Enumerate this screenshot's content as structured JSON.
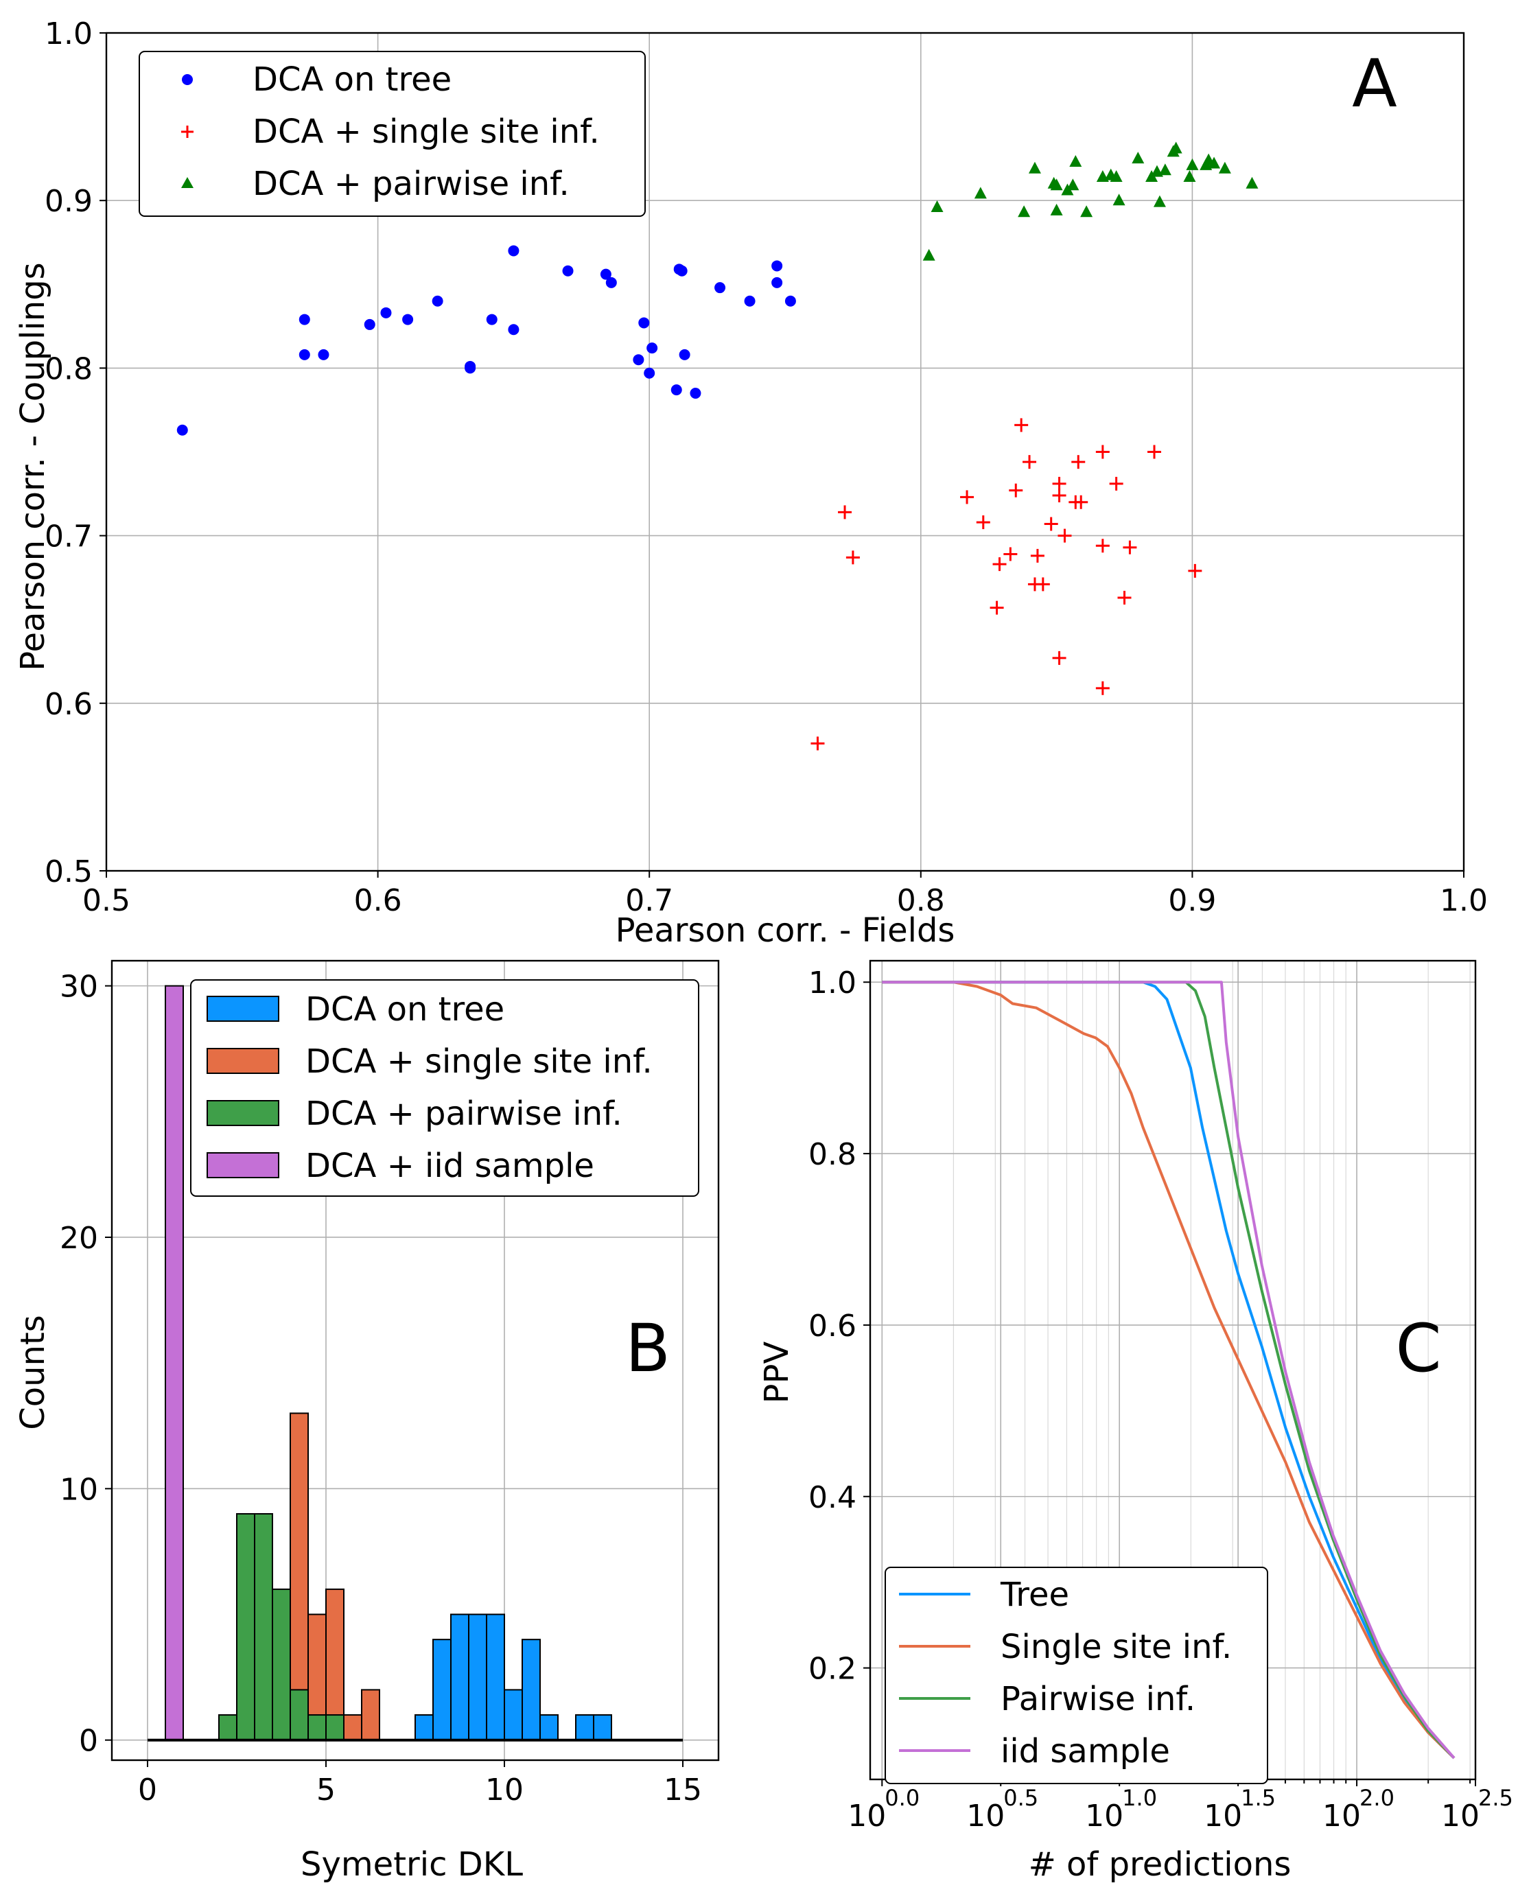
{
  "chart_data": [
    {
      "panel": "A",
      "type": "scatter",
      "xlabel": "Pearson corr. - Fields",
      "ylabel": "Pearson corr. - Couplings",
      "xlim": [
        0.5,
        1.0
      ],
      "ylim": [
        0.5,
        1.0
      ],
      "xticks": [
        "0.5",
        "0.6",
        "0.7",
        "0.8",
        "0.9",
        "1.0"
      ],
      "yticks": [
        "0.5",
        "0.6",
        "0.7",
        "0.8",
        "0.9",
        "1.0"
      ],
      "grid": true,
      "legend_position": "top-left",
      "series": [
        {
          "name": "DCA on tree",
          "marker": "dot",
          "color": "#0000ff",
          "points": [
            [
              0.528,
              0.763
            ],
            [
              0.573,
              0.829
            ],
            [
              0.573,
              0.808
            ],
            [
              0.58,
              0.808
            ],
            [
              0.597,
              0.826
            ],
            [
              0.603,
              0.833
            ],
            [
              0.611,
              0.829
            ],
            [
              0.622,
              0.84
            ],
            [
              0.634,
              0.801
            ],
            [
              0.634,
              0.8
            ],
            [
              0.642,
              0.829
            ],
            [
              0.65,
              0.87
            ],
            [
              0.65,
              0.823
            ],
            [
              0.67,
              0.858
            ],
            [
              0.684,
              0.856
            ],
            [
              0.686,
              0.851
            ],
            [
              0.696,
              0.805
            ],
            [
              0.698,
              0.827
            ],
            [
              0.7,
              0.797
            ],
            [
              0.701,
              0.812
            ],
            [
              0.71,
              0.787
            ],
            [
              0.711,
              0.859
            ],
            [
              0.712,
              0.858
            ],
            [
              0.713,
              0.808
            ],
            [
              0.717,
              0.785
            ],
            [
              0.726,
              0.848
            ],
            [
              0.737,
              0.84
            ],
            [
              0.747,
              0.861
            ],
            [
              0.747,
              0.851
            ],
            [
              0.752,
              0.84
            ]
          ]
        },
        {
          "name": "DCA + single site inf.",
          "marker": "plus",
          "color": "#ff0000",
          "points": [
            [
              0.762,
              0.576
            ],
            [
              0.772,
              0.714
            ],
            [
              0.775,
              0.687
            ],
            [
              0.817,
              0.723
            ],
            [
              0.823,
              0.708
            ],
            [
              0.828,
              0.657
            ],
            [
              0.829,
              0.683
            ],
            [
              0.833,
              0.689
            ],
            [
              0.835,
              0.727
            ],
            [
              0.837,
              0.766
            ],
            [
              0.84,
              0.744
            ],
            [
              0.842,
              0.671
            ],
            [
              0.843,
              0.688
            ],
            [
              0.845,
              0.671
            ],
            [
              0.848,
              0.707
            ],
            [
              0.851,
              0.627
            ],
            [
              0.851,
              0.731
            ],
            [
              0.851,
              0.724
            ],
            [
              0.853,
              0.7
            ],
            [
              0.857,
              0.72
            ],
            [
              0.858,
              0.744
            ],
            [
              0.859,
              0.72
            ],
            [
              0.867,
              0.694
            ],
            [
              0.867,
              0.75
            ],
            [
              0.867,
              0.609
            ],
            [
              0.872,
              0.731
            ],
            [
              0.875,
              0.663
            ],
            [
              0.877,
              0.693
            ],
            [
              0.886,
              0.75
            ],
            [
              0.901,
              0.679
            ]
          ]
        },
        {
          "name": "DCA + pairwise inf.",
          "marker": "triangle",
          "color": "#008000",
          "points": [
            [
              0.803,
              0.867
            ],
            [
              0.806,
              0.896
            ],
            [
              0.822,
              0.904
            ],
            [
              0.838,
              0.893
            ],
            [
              0.842,
              0.919
            ],
            [
              0.849,
              0.91
            ],
            [
              0.85,
              0.909
            ],
            [
              0.85,
              0.894
            ],
            [
              0.854,
              0.906
            ],
            [
              0.856,
              0.909
            ],
            [
              0.857,
              0.923
            ],
            [
              0.861,
              0.893
            ],
            [
              0.867,
              0.914
            ],
            [
              0.87,
              0.915
            ],
            [
              0.872,
              0.914
            ],
            [
              0.873,
              0.9
            ],
            [
              0.88,
              0.925
            ],
            [
              0.885,
              0.914
            ],
            [
              0.887,
              0.917
            ],
            [
              0.888,
              0.899
            ],
            [
              0.89,
              0.918
            ],
            [
              0.893,
              0.929
            ],
            [
              0.894,
              0.931
            ],
            [
              0.899,
              0.914
            ],
            [
              0.9,
              0.921
            ],
            [
              0.905,
              0.921
            ],
            [
              0.906,
              0.924
            ],
            [
              0.908,
              0.922
            ],
            [
              0.912,
              0.919
            ],
            [
              0.922,
              0.91
            ]
          ]
        }
      ],
      "annotation": "A"
    },
    {
      "panel": "B",
      "type": "histogram",
      "xlabel": "Symetric DKL",
      "ylabel": "Counts",
      "xlim": [
        -1,
        16
      ],
      "ylim": [
        -0.8,
        31
      ],
      "xticks": [
        "0",
        "5",
        "10",
        "15"
      ],
      "yticks": [
        "0",
        "10",
        "20",
        "30"
      ],
      "grid": true,
      "legend_position": "top-right",
      "series": [
        {
          "name": "DCA on tree",
          "color": "#0b95ff",
          "bins": [
            [
              7.5,
              8.0,
              1
            ],
            [
              8.0,
              8.5,
              4
            ],
            [
              8.5,
              9.0,
              5
            ],
            [
              9.0,
              9.5,
              5
            ],
            [
              9.5,
              10.0,
              5
            ],
            [
              10.0,
              10.5,
              2
            ],
            [
              10.5,
              11.0,
              4
            ],
            [
              11.0,
              11.5,
              1
            ],
            [
              12.0,
              12.5,
              1
            ],
            [
              12.5,
              13.0,
              1
            ]
          ]
        },
        {
          "name": "DCA + single site inf.",
          "color": "#e56e45",
          "bins": [
            [
              4.0,
              4.5,
              13
            ],
            [
              4.5,
              5.0,
              5
            ],
            [
              5.0,
              5.5,
              6
            ],
            [
              5.5,
              6.0,
              1
            ],
            [
              6.0,
              6.5,
              2
            ]
          ]
        },
        {
          "name": "DCA + pairwise inf.",
          "color": "#3f9f49",
          "bins": [
            [
              2.0,
              2.5,
              1
            ],
            [
              2.5,
              3.0,
              9
            ],
            [
              3.0,
              3.5,
              9
            ],
            [
              3.5,
              4.0,
              6
            ],
            [
              4.0,
              4.5,
              2
            ],
            [
              4.5,
              5.0,
              1
            ],
            [
              5.0,
              5.5,
              1
            ]
          ]
        },
        {
          "name": "DCA + iid sample",
          "color": "#c470d6",
          "bins": [
            [
              0.5,
              1.0,
              30
            ]
          ]
        }
      ],
      "annotation": "B"
    },
    {
      "panel": "C",
      "type": "line",
      "xscale": "log10",
      "xlabel": "# of predictions",
      "ylabel": "PPV",
      "xlim": [
        -0.05,
        2.5
      ],
      "ylim": [
        0.07,
        1.025
      ],
      "xticks": [
        {
          "base": "10",
          "exp": "0.0",
          "value": 0.0
        },
        {
          "base": "10",
          "exp": "0.5",
          "value": 0.5
        },
        {
          "base": "10",
          "exp": "1.0",
          "value": 1.0
        },
        {
          "base": "10",
          "exp": "1.5",
          "value": 1.5
        },
        {
          "base": "10",
          "exp": "2.0",
          "value": 2.0
        },
        {
          "base": "10",
          "exp": "2.5",
          "value": 2.5
        }
      ],
      "yticks": [
        "0.2",
        "0.4",
        "0.6",
        "0.8",
        "1.0"
      ],
      "grid": true,
      "legend_position": "bottom-left",
      "series": [
        {
          "name": "Tree",
          "color": "#0b95ff",
          "log_x": [
            0.0,
            1.1,
            1.15,
            1.2,
            1.25,
            1.3,
            1.35,
            1.4,
            1.45,
            1.5,
            1.6,
            1.7,
            1.8,
            1.9,
            2.0,
            2.1,
            2.2,
            2.3,
            2.41
          ],
          "y": [
            1.0,
            1.0,
            0.995,
            0.98,
            0.94,
            0.9,
            0.83,
            0.77,
            0.71,
            0.66,
            0.575,
            0.48,
            0.4,
            0.33,
            0.27,
            0.21,
            0.165,
            0.125,
            0.095
          ]
        },
        {
          "name": "Single site inf.",
          "color": "#e56e45",
          "log_x": [
            0.0,
            0.3,
            0.4,
            0.5,
            0.55,
            0.65,
            0.75,
            0.85,
            0.9,
            0.95,
            1.0,
            1.05,
            1.1,
            1.2,
            1.3,
            1.4,
            1.5,
            1.6,
            1.7,
            1.8,
            1.9,
            2.0,
            2.1,
            2.2,
            2.3,
            2.41
          ],
          "y": [
            1.0,
            1.0,
            0.995,
            0.985,
            0.975,
            0.97,
            0.955,
            0.94,
            0.935,
            0.925,
            0.9,
            0.87,
            0.83,
            0.76,
            0.69,
            0.62,
            0.56,
            0.5,
            0.44,
            0.37,
            0.315,
            0.26,
            0.205,
            0.16,
            0.125,
            0.095
          ]
        },
        {
          "name": "Pairwise inf.",
          "color": "#3f9f49",
          "log_x": [
            0.0,
            1.28,
            1.32,
            1.36,
            1.4,
            1.45,
            1.5,
            1.6,
            1.7,
            1.8,
            1.9,
            2.0,
            2.1,
            2.2,
            2.3,
            2.41
          ],
          "y": [
            1.0,
            1.0,
            0.99,
            0.96,
            0.9,
            0.83,
            0.76,
            0.64,
            0.53,
            0.43,
            0.35,
            0.28,
            0.215,
            0.167,
            0.127,
            0.095
          ]
        },
        {
          "name": "iid sample",
          "color": "#c470d6",
          "log_x": [
            0.0,
            1.43,
            1.45,
            1.5,
            1.6,
            1.7,
            1.8,
            1.9,
            2.0,
            2.1,
            2.2,
            2.3,
            2.41
          ],
          "y": [
            1.0,
            1.0,
            0.93,
            0.82,
            0.67,
            0.545,
            0.44,
            0.355,
            0.285,
            0.22,
            0.17,
            0.13,
            0.095
          ]
        }
      ],
      "annotation": "C"
    }
  ]
}
